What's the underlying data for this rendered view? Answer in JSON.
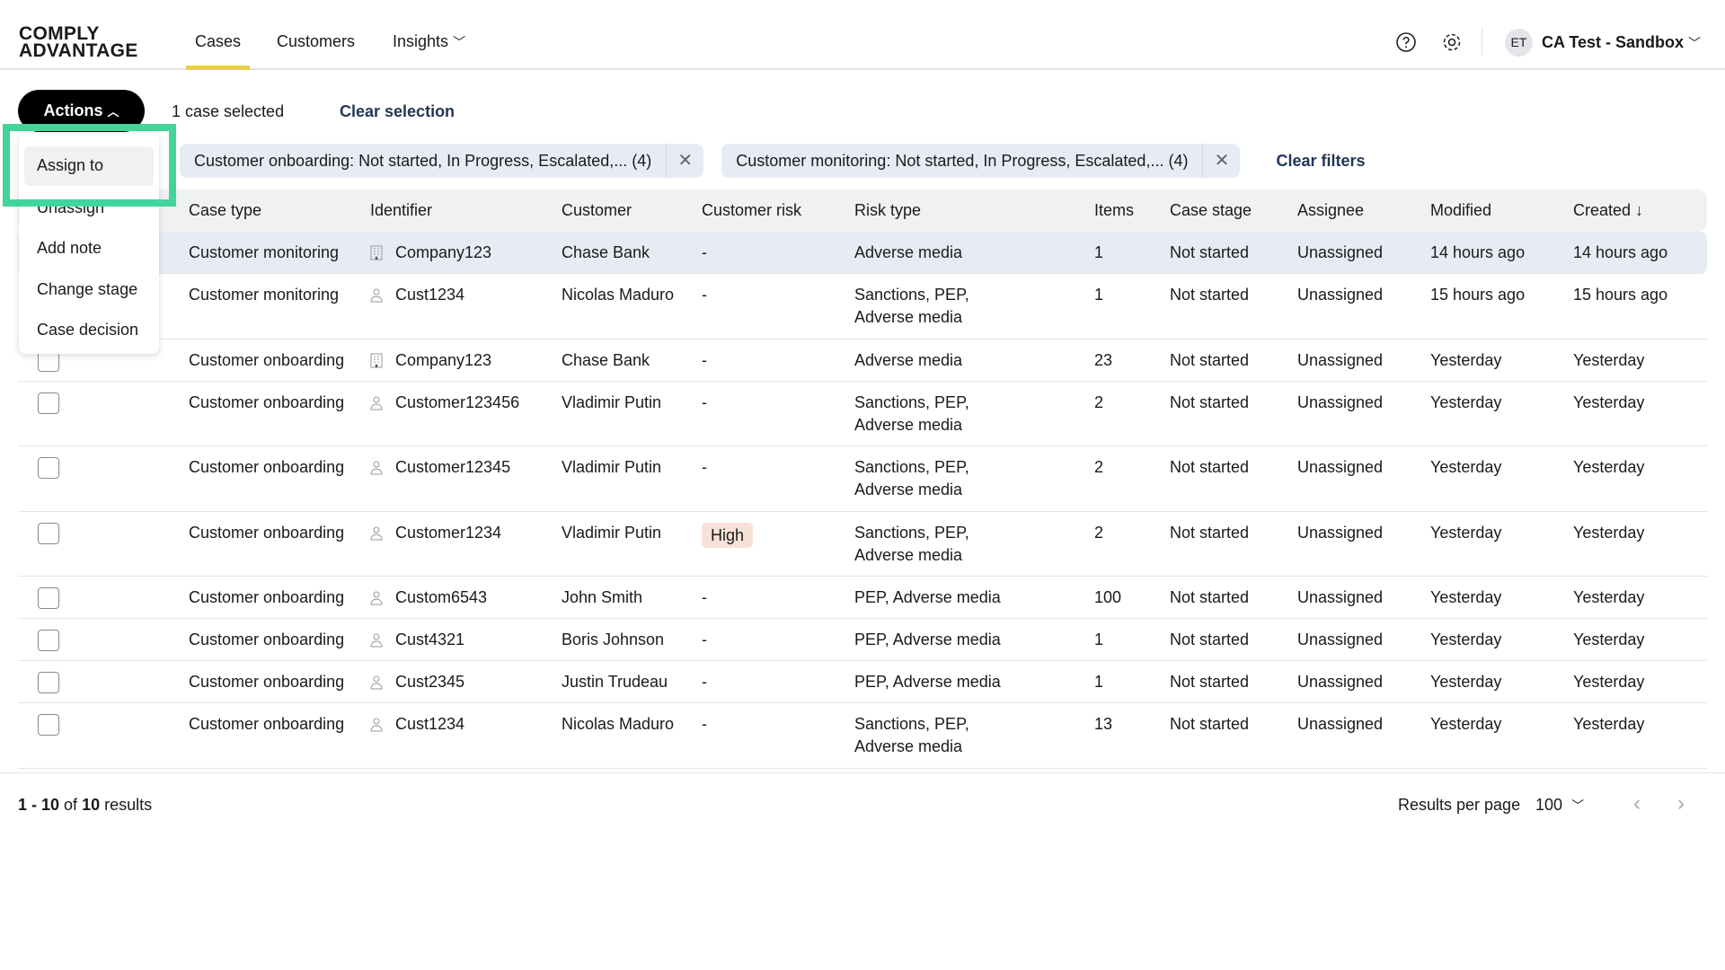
{
  "nav": {
    "logo": "COMPLY ADVANTAGE",
    "tabs": [
      {
        "label": "Cases"
      },
      {
        "label": "Customers"
      },
      {
        "label": "Insights"
      }
    ],
    "avatar": "ET",
    "account": "CA Test - Sandbox"
  },
  "toolbar": {
    "actions": "Actions",
    "selected": "1 case selected",
    "clear_selection": "Clear selection",
    "clear_filters": "Clear filters"
  },
  "filters": [
    {
      "label": "Customer onboarding: Not started, In Progress, Escalated,... (4)"
    },
    {
      "label": "Customer monitoring: Not started, In Progress, Escalated,... (4)"
    }
  ],
  "menu": {
    "items": [
      {
        "label": "Assign to"
      },
      {
        "label": "Unassign"
      },
      {
        "label": "Add note"
      },
      {
        "label": "Change stage"
      },
      {
        "label": "Case decision"
      }
    ]
  },
  "table": {
    "headers": [
      "Case type",
      "Identifier",
      "Customer",
      "Customer risk",
      "Risk type",
      "Items",
      "Case stage",
      "Assignee",
      "Modified",
      "Created ↓"
    ],
    "rows": [
      [
        "Customer monitoring",
        "company",
        "Company123",
        "Chase Bank",
        "-",
        "Adverse media",
        "1",
        "Not started",
        "Unassigned",
        "14 hours ago",
        "14 hours ago"
      ],
      [
        "Customer monitoring",
        "person",
        "Cust1234",
        "Nicolas Maduro",
        "-",
        "Sanctions, PEP,\nAdverse media",
        "1",
        "Not started",
        "Unassigned",
        "15 hours ago",
        "15 hours ago"
      ],
      [
        "Customer onboarding",
        "company",
        "Company123",
        "Chase Bank",
        "-",
        "Adverse media",
        "23",
        "Not started",
        "Unassigned",
        "Yesterday",
        "Yesterday"
      ],
      [
        "Customer onboarding",
        "person",
        "Customer123456",
        "Vladimir Putin",
        "-",
        "Sanctions, PEP,\nAdverse media",
        "2",
        "Not started",
        "Unassigned",
        "Yesterday",
        "Yesterday"
      ],
      [
        "Customer onboarding",
        "person",
        "Customer12345",
        "Vladimir Putin",
        "-",
        "Sanctions, PEP,\nAdverse media",
        "2",
        "Not started",
        "Unassigned",
        "Yesterday",
        "Yesterday"
      ],
      [
        "Customer onboarding",
        "person",
        "Customer1234",
        "Vladimir Putin",
        "High",
        "Sanctions, PEP,\nAdverse media",
        "2",
        "Not started",
        "Unassigned",
        "Yesterday",
        "Yesterday"
      ],
      [
        "Customer onboarding",
        "person",
        "Custom6543",
        "John Smith",
        "-",
        "PEP, Adverse media",
        "100",
        "Not started",
        "Unassigned",
        "Yesterday",
        "Yesterday"
      ],
      [
        "Customer onboarding",
        "person",
        "Cust4321",
        "Boris Johnson",
        "-",
        "PEP, Adverse media",
        "1",
        "Not started",
        "Unassigned",
        "Yesterday",
        "Yesterday"
      ],
      [
        "Customer onboarding",
        "person",
        "Cust2345",
        "Justin Trudeau",
        "-",
        "PEP, Adverse media",
        "1",
        "Not started",
        "Unassigned",
        "Yesterday",
        "Yesterday"
      ],
      [
        "Customer onboarding",
        "person",
        "Cust1234",
        "Nicolas Maduro",
        "-",
        "Sanctions, PEP,\nAdverse media",
        "13",
        "Not started",
        "Unassigned",
        "Yesterday",
        "Yesterday"
      ]
    ]
  },
  "footer": {
    "range": "1 - 10",
    "of": "of",
    "total": "10",
    "results": "results",
    "per_page_label": "Results per page",
    "per_page": "100"
  },
  "colors": {
    "highlight": "#43d49b",
    "tab_underline": "#e8cf4a",
    "selected_row": "#e7ecf4",
    "high_badge": "#f6e2d6"
  }
}
